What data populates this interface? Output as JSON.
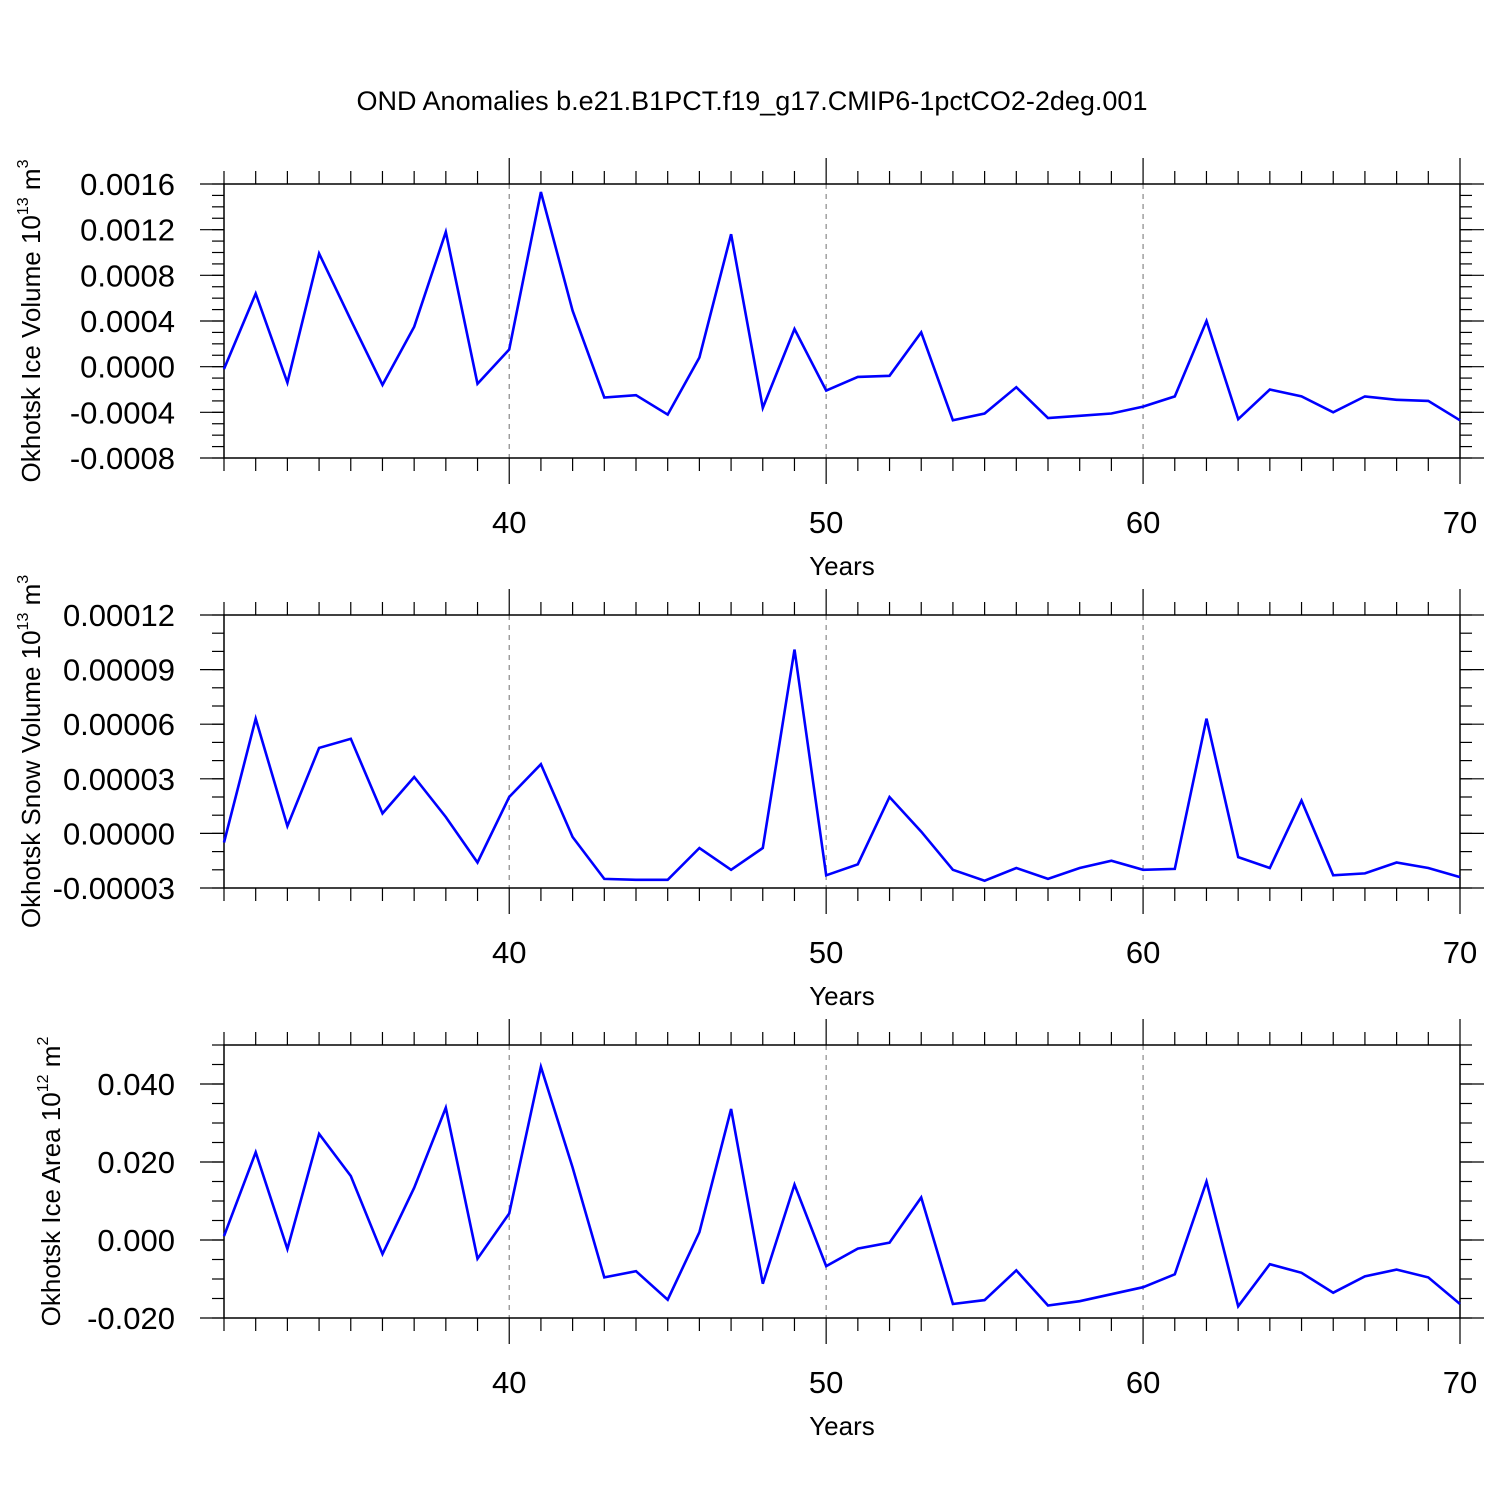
{
  "title": "OND Anomalies b.e21.B1PCT.f19_g17.CMIP6-1pctCO2-2deg.001",
  "chart_data": [
    {
      "type": "line",
      "xlabel": "Years",
      "ylabel": {
        "text": "Okhotsk Ice Volume 10",
        "exp": "13",
        "unit": " m",
        "unit_exp": "3"
      },
      "xlim": [
        31,
        70
      ],
      "ylim": [
        -0.0008,
        0.0016
      ],
      "x_ticks": [
        40,
        50,
        60,
        70
      ],
      "x_tick_labels": [
        "40",
        "50",
        "60",
        "70"
      ],
      "y_ticks": [
        -0.0008,
        -0.0004,
        0.0,
        0.0004,
        0.0008,
        0.0012,
        0.0016
      ],
      "y_tick_labels": [
        "-0.0008",
        "-0.0004",
        "0.0000",
        "0.0004",
        "0.0008",
        "0.0012",
        "0.0016"
      ],
      "y_minor_step": 0.0001,
      "grid": "vertical dashed at major x ticks",
      "color": "#0000ff",
      "x": [
        31,
        32,
        33,
        34,
        35,
        36,
        37,
        38,
        39,
        40,
        41,
        42,
        43,
        44,
        45,
        46,
        47,
        48,
        49,
        50,
        51,
        52,
        53,
        54,
        55,
        56,
        57,
        58,
        59,
        60,
        61,
        62,
        63,
        64,
        65,
        66,
        67,
        68,
        69,
        70
      ],
      "y": [
        -2e-05,
        0.00064,
        -0.00014,
        0.00099,
        0.00041,
        -0.00016,
        0.00035,
        0.00118,
        -0.00015,
        0.00015,
        0.00153,
        0.00049,
        -0.00027,
        -0.00025,
        -0.00042,
        8e-05,
        0.00116,
        -0.00036,
        0.00033,
        -0.00021,
        -9e-05,
        -8e-05,
        0.0003,
        -0.00047,
        -0.00041,
        -0.00018,
        -0.00045,
        -0.00043,
        -0.00041,
        -0.00035,
        -0.00026,
        0.0004,
        -0.00046,
        -0.0002,
        -0.00026,
        -0.0004,
        -0.00026,
        -0.00029,
        -0.0003,
        -0.00047
      ]
    },
    {
      "type": "line",
      "xlabel": "Years",
      "ylabel": {
        "text": "Okhotsk Snow Volume 10",
        "exp": "13",
        "unit": " m",
        "unit_exp": "3"
      },
      "xlim": [
        31,
        70
      ],
      "ylim": [
        -3e-05,
        0.00012
      ],
      "x_ticks": [
        40,
        50,
        60,
        70
      ],
      "x_tick_labels": [
        "40",
        "50",
        "60",
        "70"
      ],
      "y_ticks": [
        -3e-05,
        0.0,
        3e-05,
        6e-05,
        9e-05,
        0.00012
      ],
      "y_tick_labels": [
        "-0.00003",
        "0.00000",
        "0.00003",
        "0.00006",
        "0.00009",
        "0.00012"
      ],
      "y_minor_step": 1e-05,
      "grid": "vertical dashed at major x ticks",
      "color": "#0000ff",
      "x": [
        31,
        32,
        33,
        34,
        35,
        36,
        37,
        38,
        39,
        40,
        41,
        42,
        43,
        44,
        45,
        46,
        47,
        48,
        49,
        50,
        51,
        52,
        53,
        54,
        55,
        56,
        57,
        58,
        59,
        60,
        61,
        62,
        63,
        64,
        65,
        66,
        67,
        68,
        69,
        70
      ],
      "y": [
        -5e-06,
        6.3e-05,
        4e-06,
        4.7e-05,
        5.2e-05,
        1.1e-05,
        3.1e-05,
        9e-06,
        -1.6e-05,
        2e-05,
        3.8e-05,
        -2e-06,
        -2.5e-05,
        -2.55e-05,
        -2.55e-05,
        -8e-06,
        -2e-05,
        -8e-06,
        0.000101,
        -2.3e-05,
        -1.7e-05,
        2e-05,
        1e-06,
        -2e-05,
        -2.6e-05,
        -1.9e-05,
        -2.5e-05,
        -1.9e-05,
        -1.5e-05,
        -2e-05,
        -1.95e-05,
        6.3e-05,
        -1.3e-05,
        -1.9e-05,
        1.8e-05,
        -2.3e-05,
        -2.2e-05,
        -1.6e-05,
        -1.9e-05,
        -2.4e-05
      ]
    },
    {
      "type": "line",
      "xlabel": "Years",
      "ylabel": {
        "text": "Okhotsk Ice Area 10",
        "exp": "12",
        "unit": " m",
        "unit_exp": "2"
      },
      "xlim": [
        31,
        70
      ],
      "ylim": [
        -0.02,
        0.05
      ],
      "x_ticks": [
        40,
        50,
        60,
        70
      ],
      "x_tick_labels": [
        "40",
        "50",
        "60",
        "70"
      ],
      "y_ticks": [
        -0.02,
        0.0,
        0.02,
        0.04
      ],
      "y_tick_labels": [
        "-0.020",
        "0.000",
        "0.020",
        "0.040"
      ],
      "y_minor_step": 0.005,
      "grid": "vertical dashed at major x ticks",
      "color": "#0000ff",
      "x": [
        31,
        32,
        33,
        34,
        35,
        36,
        37,
        38,
        39,
        40,
        41,
        42,
        43,
        44,
        45,
        46,
        47,
        48,
        49,
        50,
        51,
        52,
        53,
        54,
        55,
        56,
        57,
        58,
        59,
        60,
        61,
        62,
        63,
        64,
        65,
        66,
        67,
        68,
        69,
        70
      ],
      "y": [
        0.001,
        0.0225,
        -0.0023,
        0.0272,
        0.0164,
        -0.0036,
        0.0134,
        0.0339,
        -0.0048,
        0.0068,
        0.0444,
        0.0186,
        -0.0096,
        -0.008,
        -0.0153,
        0.002,
        0.0336,
        -0.0112,
        0.0142,
        -0.0067,
        -0.0022,
        -0.0007,
        0.0109,
        -0.0164,
        -0.0154,
        -0.0078,
        -0.0168,
        -0.0157,
        -0.0139,
        -0.0121,
        -0.0088,
        0.015,
        -0.017,
        -0.0062,
        -0.0084,
        -0.0135,
        -0.0093,
        -0.0076,
        -0.0096,
        -0.0164
      ]
    }
  ]
}
